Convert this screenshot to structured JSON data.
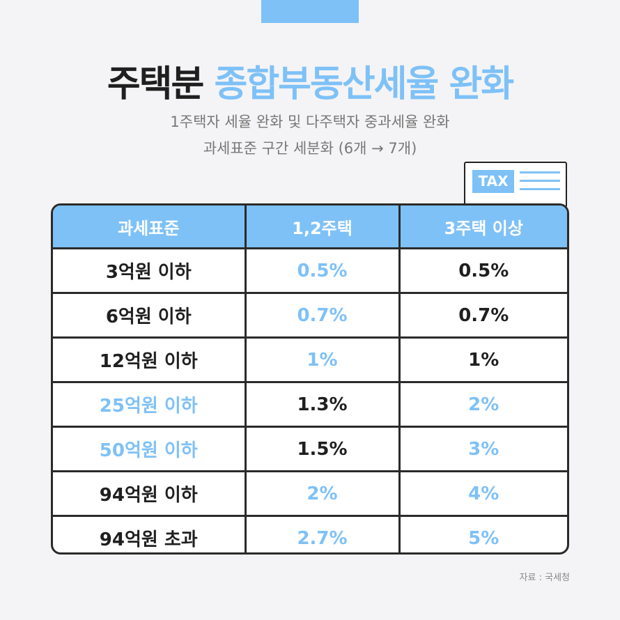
{
  "title": {
    "part1": "주택분",
    "part2": "종합부동산세율 완화"
  },
  "subtitle": {
    "line1": "1주택자 세율 완화 및 다주택자 중과세율 완화",
    "line2": "과세표준 구간 세분화 (6개 → 7개)"
  },
  "badge": "TAX",
  "colors": {
    "accent": "#7ec1f7",
    "text": "#1f1f1f"
  },
  "table": {
    "headers": [
      "과세표준",
      "1,2주택",
      "3주택 이상"
    ],
    "rows": [
      {
        "cells": [
          "3억원 이하",
          "0.5%",
          "0.5%"
        ],
        "highlight": [
          false,
          true,
          false
        ]
      },
      {
        "cells": [
          "6억원 이하",
          "0.7%",
          "0.7%"
        ],
        "highlight": [
          false,
          true,
          false
        ]
      },
      {
        "cells": [
          "12억원 이하",
          "1%",
          "1%"
        ],
        "highlight": [
          false,
          true,
          false
        ]
      },
      {
        "cells": [
          "25억원 이하",
          "1.3%",
          "2%"
        ],
        "highlight": [
          true,
          false,
          true
        ]
      },
      {
        "cells": [
          "50억원 이하",
          "1.5%",
          "3%"
        ],
        "highlight": [
          true,
          false,
          true
        ]
      },
      {
        "cells": [
          "94억원 이하",
          "2%",
          "4%"
        ],
        "highlight": [
          false,
          true,
          true
        ]
      },
      {
        "cells": [
          "94억원 초과",
          "2.7%",
          "5%"
        ],
        "highlight": [
          false,
          true,
          true
        ]
      }
    ]
  },
  "source": "자료 : 국세청"
}
